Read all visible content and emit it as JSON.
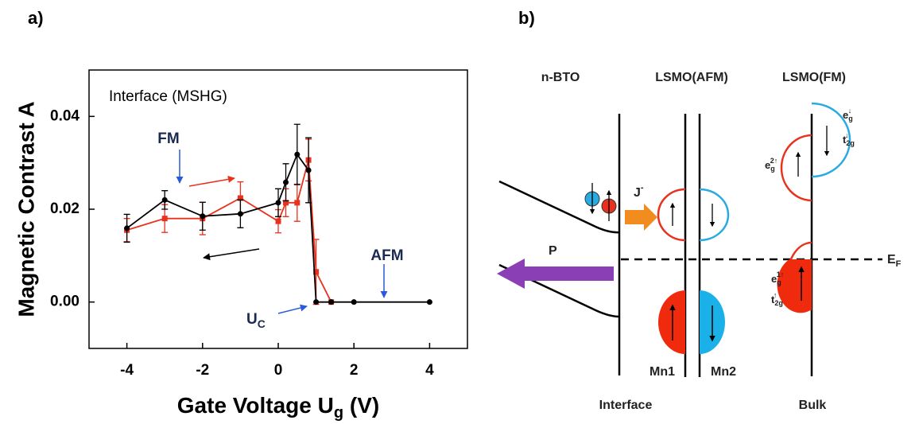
{
  "chart_data": {
    "type": "line",
    "panel_label": "a)",
    "x_label": {
      "main": "Gate Voltage U",
      "sub": "g",
      "tail": " (V)"
    },
    "y_label": "Magnetic Contrast  A",
    "annotations": {
      "title": "Interface (MSHG)",
      "fm": "FM",
      "afm": "AFM",
      "uc": {
        "main": "U",
        "sub": "C"
      }
    },
    "xlim": [
      -5,
      5
    ],
    "xticks": [
      -4,
      -2,
      0,
      2,
      4
    ],
    "ylim": [
      -0.01,
      0.05
    ],
    "yticks": [
      {
        "value": 0,
        "label": "0.00"
      },
      {
        "value": 0.02,
        "label": "0.02"
      },
      {
        "value": 0.04,
        "label": "0.04"
      }
    ],
    "series": [
      {
        "color": "#e8321e",
        "marker": "square",
        "x": [
          -4,
          -3,
          -2,
          -1,
          0,
          0.2,
          0.5,
          0.8,
          1.0,
          1.4
        ],
        "values": [
          0.0155,
          0.018,
          0.018,
          0.0224,
          0.0174,
          0.0214,
          0.0214,
          0.0306,
          0.0065,
          0
        ],
        "errors": [
          0.0025,
          0.003,
          0.0035,
          0.0035,
          0.0025,
          0.003,
          0.004,
          0.0045,
          0.007,
          0
        ]
      },
      {
        "color": "#000000",
        "marker": "circle",
        "x": [
          -4,
          -3,
          -2,
          -1,
          0,
          0.2,
          0.5,
          0.8,
          1.0,
          1.4,
          2,
          4
        ],
        "values": [
          0.0159,
          0.022,
          0.0185,
          0.019,
          0.0214,
          0.0258,
          0.0318,
          0.0284,
          0,
          0,
          0,
          0
        ],
        "errors": [
          0.003,
          0.002,
          0.003,
          0.003,
          0.003,
          0.004,
          0.0065,
          0.007,
          0,
          0,
          0,
          0
        ]
      }
    ]
  },
  "diagram": {
    "panel_label": "b)",
    "headers": [
      "n-BTO",
      "LSMO(AFM)",
      "LSMO(FM)"
    ],
    "footers": [
      "Interface",
      "Bulk"
    ],
    "sites": [
      "Mn1",
      "Mn2"
    ],
    "current": {
      "main": "J",
      "sup": "-"
    },
    "polarization": "P",
    "fermi": {
      "main": "E",
      "sub": "F"
    },
    "orbitals": [
      {
        "main": "e",
        "sub": "g",
        "sup": "↓"
      },
      {
        "main": "t",
        "sub": "2g",
        "sup": "↓"
      },
      {
        "main": "e",
        "sub": "g",
        "sup": "2↑"
      },
      {
        "main": "e",
        "sub": "g",
        "sup": "1↑"
      },
      {
        "main": "t",
        "sub": "2g",
        "sup": "↑"
      }
    ]
  }
}
